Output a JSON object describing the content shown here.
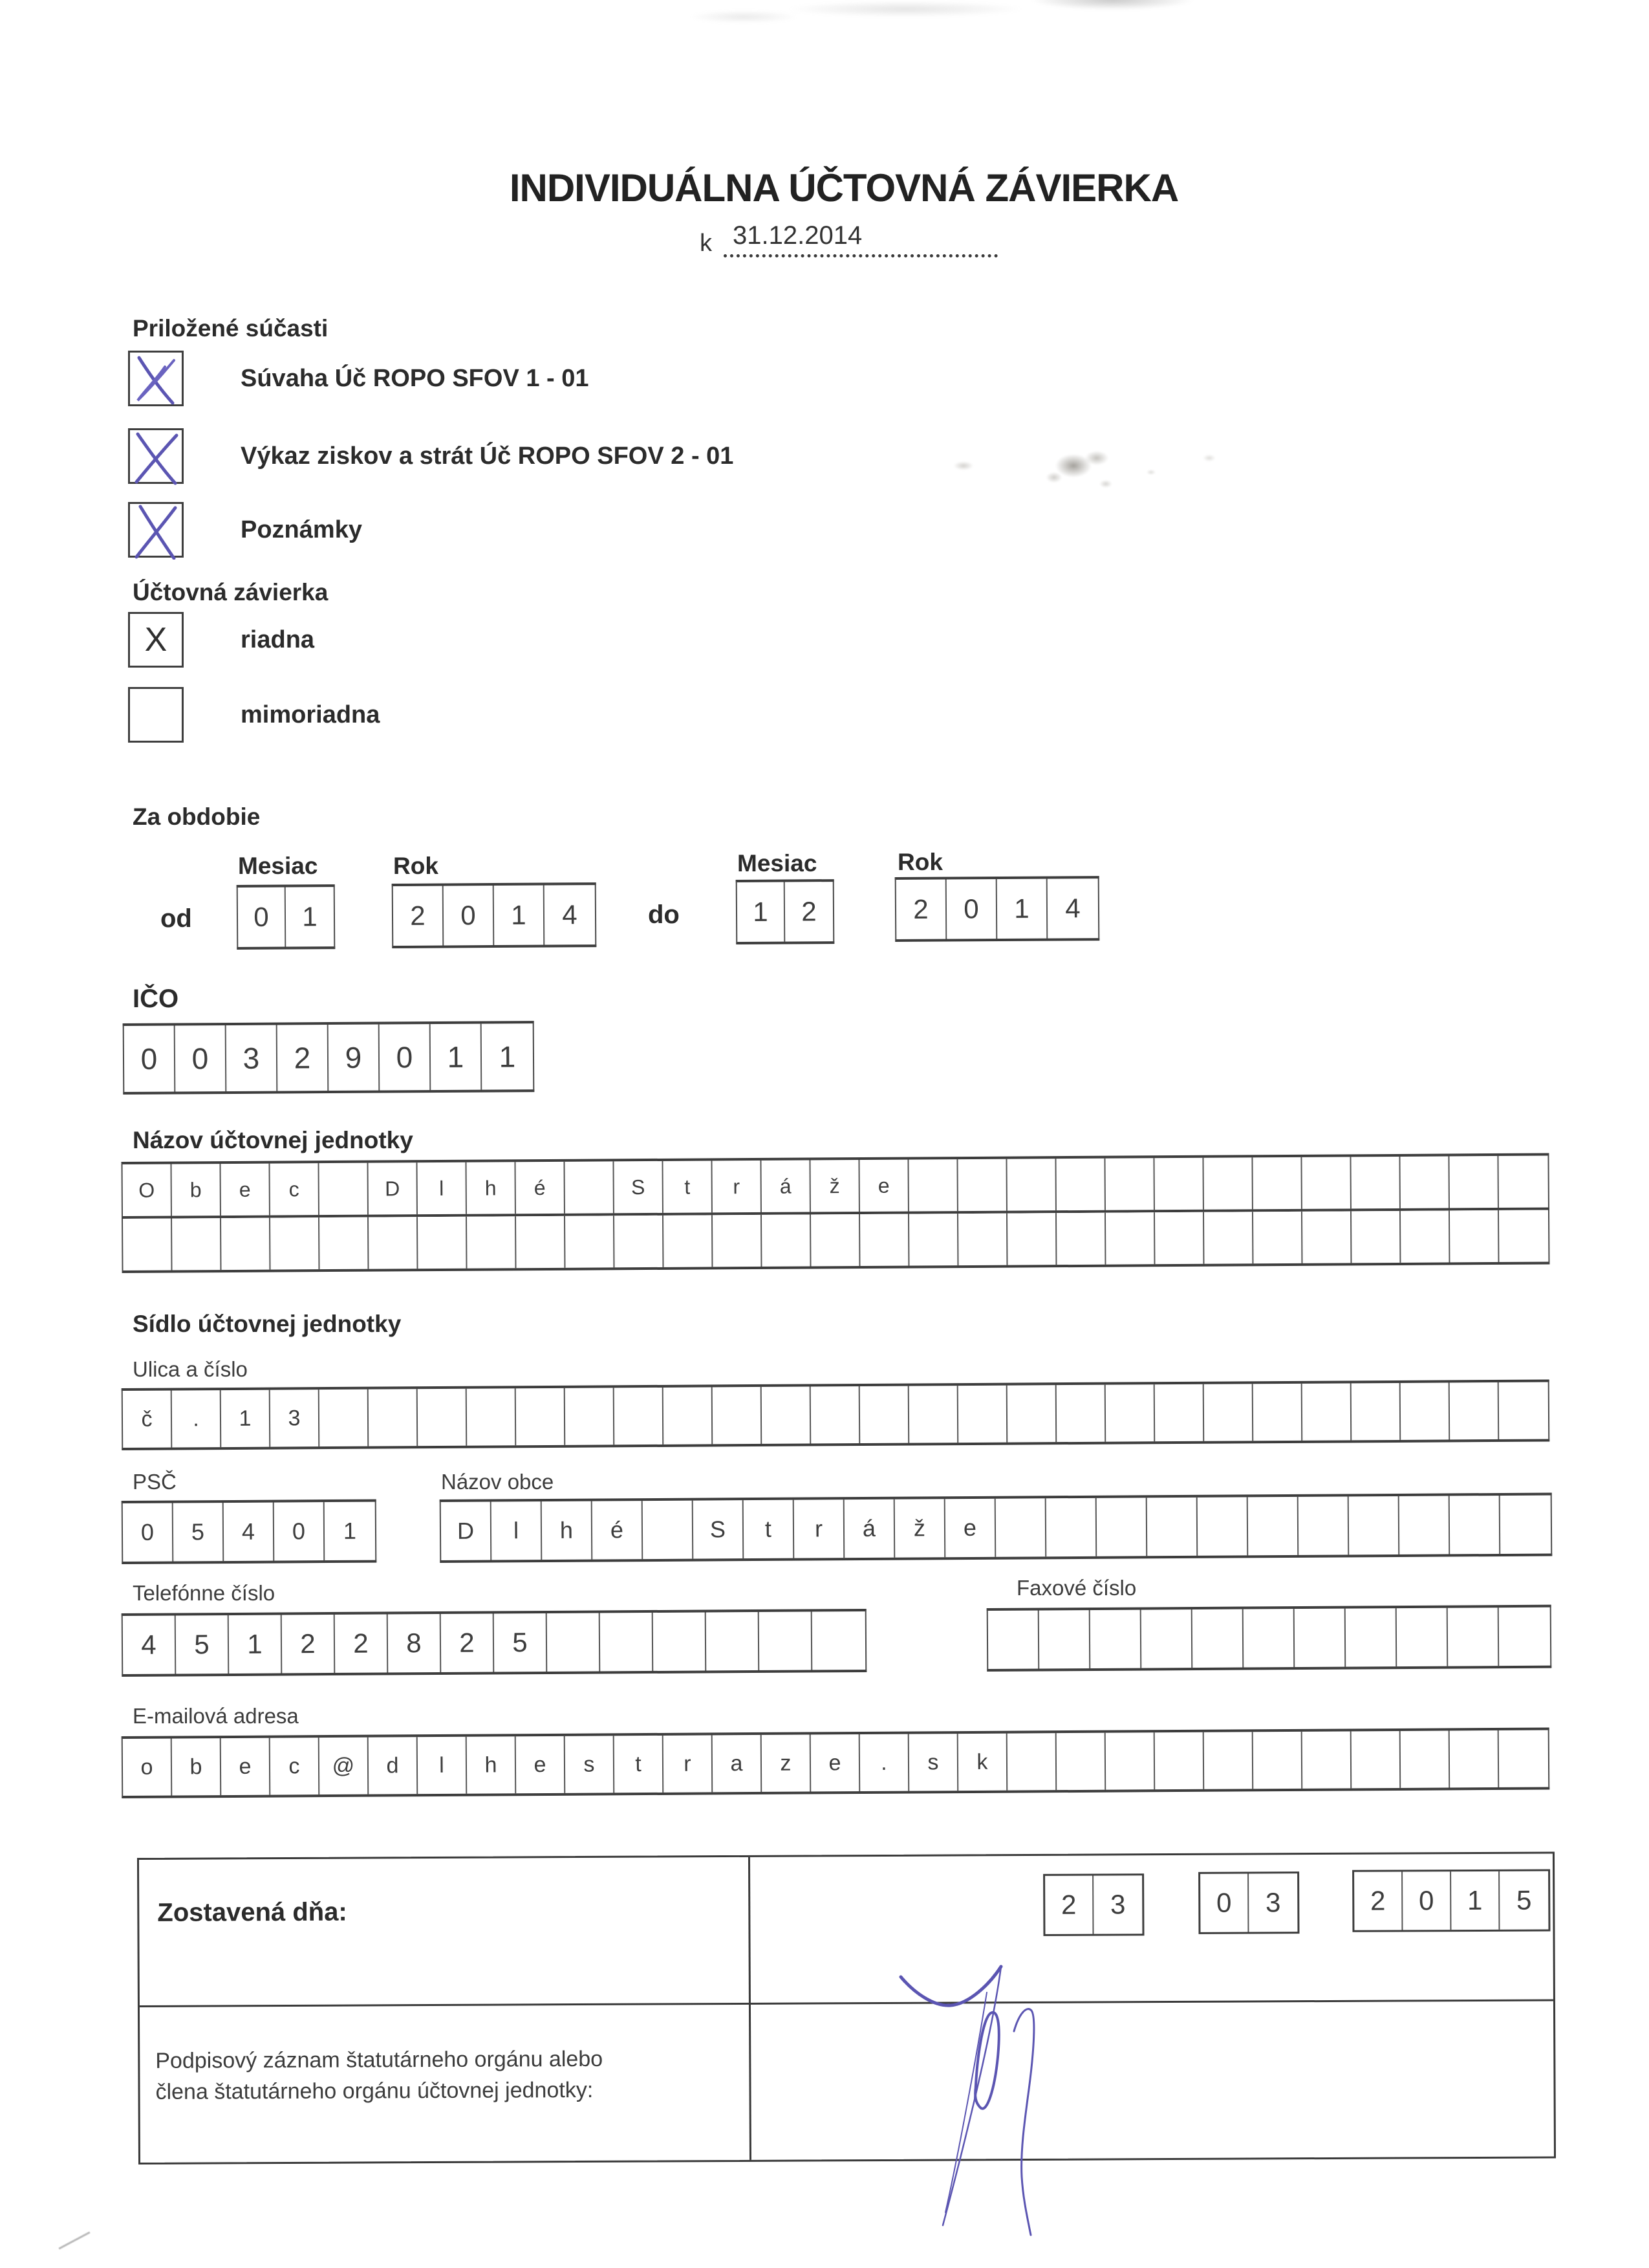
{
  "form": {
    "title": "INDIVIDUÁLNA ÚČTOVNÁ ZÁVIERKA",
    "date_prefix": "k",
    "date": "31.12.2014"
  },
  "attachments": {
    "heading": "Priložené súčasti",
    "items": [
      {
        "label": "Súvaha Úč ROPO SFOV 1 - 01",
        "checked": true
      },
      {
        "label": "Výkaz ziskov a strát Úč ROPO SFOV 2 - 01",
        "checked": true
      },
      {
        "label": "Poznámky",
        "checked": true
      }
    ]
  },
  "closing": {
    "heading": "Účtovná závierka",
    "options": [
      {
        "label": "riadna",
        "mark": "X",
        "checked": true
      },
      {
        "label": "mimoriadna",
        "mark": "",
        "checked": false
      }
    ]
  },
  "period": {
    "heading": "Za obdobie",
    "month_label": "Mesiac",
    "year_label": "Rok",
    "od_label": "od",
    "do_label": "do",
    "od_month": "01",
    "od_year": "2014",
    "do_month": "12",
    "do_year": "2014"
  },
  "ico": {
    "label": "IČO",
    "value": "00329011"
  },
  "entity": {
    "heading": "Názov účtovnej jednotky",
    "line1": "Obec Dlhé Stráže",
    "line2": ""
  },
  "address": {
    "heading": "Sídlo účtovnej jednotky",
    "street_label": "Ulica a číslo",
    "street": "č.13",
    "psc_label": "PSČ",
    "psc": "05401",
    "town_label": "Názov obce",
    "town": "Dlhé Stráže",
    "phone_label": "Telefónne číslo",
    "phone": "45122825",
    "fax_label": "Faxové číslo",
    "fax": "",
    "email_label": "E-mailová adresa",
    "email": "obec@dlhestraze.sk"
  },
  "footer": {
    "compiled_label": "Zostavená dňa:",
    "compiled_day": "23",
    "compiled_month": "03",
    "compiled_year": "2015",
    "signature_label": "Podpisový záznam štatutárneho orgánu alebo člena štatutárneho orgánu účtovnej jednotky:"
  },
  "colors": {
    "ink": "#2e2e2e",
    "pen_blue": "#5b55b2",
    "grid_line": "#4a4a4a"
  }
}
